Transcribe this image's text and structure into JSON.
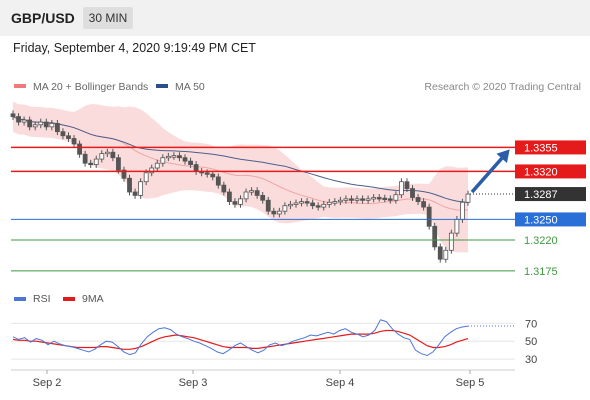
{
  "header": {
    "symbol": "GBP/USD",
    "timeframe": "30 MIN"
  },
  "timestamp": "Friday, September 4, 2020 9:19:49 PM CET",
  "copyright": "Research © 2020 Trading Central",
  "colors": {
    "red": "#e51b1b",
    "blue": "#2a6ed8",
    "green": "#3f9a3f",
    "dark": "#333333",
    "candle": "#555555",
    "band_fill": "#fbdcdc",
    "ma20": "#f2a5a5",
    "ma50": "#4a5f8c",
    "arrow": "#2b5da8",
    "rsi": "#4c76d8",
    "rsi_ma": "#e51b1b"
  },
  "chart_data": [
    {
      "type": "candlestick",
      "title": "GBP/USD",
      "timeframe": "30 MIN",
      "legend": [
        {
          "name": "MA 20 + Bollinger Bands",
          "color": "#f07a7a"
        },
        {
          "name": "MA 50",
          "color": "#2b4f8c"
        }
      ],
      "x_ticks": [
        "Sep 2",
        "Sep 3",
        "Sep 4",
        "Sep 5"
      ],
      "ylim": [
        1.315,
        1.343
      ],
      "levels": [
        {
          "value": "1.3355",
          "color": "red",
          "label_style": "filled"
        },
        {
          "value": "1.3320",
          "color": "red",
          "label_style": "filled"
        },
        {
          "value": "1.3287",
          "color": "dark",
          "label_style": "filled",
          "line": "dotted"
        },
        {
          "value": "1.3250",
          "color": "blue",
          "label_style": "filled"
        },
        {
          "value": "1.3220",
          "color": "green",
          "label_style": "text"
        },
        {
          "value": "1.3175",
          "color": "green",
          "label_style": "text"
        }
      ],
      "close_series": [
        1.34,
        1.3392,
        1.3395,
        1.3385,
        1.3388,
        1.3392,
        1.3385,
        1.339,
        1.3378,
        1.3372,
        1.3368,
        1.336,
        1.3345,
        1.3332,
        1.333,
        1.3338,
        1.3346,
        1.3348,
        1.334,
        1.3322,
        1.331,
        1.329,
        1.3285,
        1.3305,
        1.3318,
        1.3325,
        1.3332,
        1.334,
        1.3342,
        1.3343,
        1.334,
        1.3335,
        1.333,
        1.332,
        1.3318,
        1.3316,
        1.3312,
        1.33,
        1.329,
        1.3276,
        1.3272,
        1.328,
        1.329,
        1.3292,
        1.3285,
        1.3278,
        1.3262,
        1.3258,
        1.3262,
        1.327,
        1.3272,
        1.3274,
        1.3276,
        1.3274,
        1.327,
        1.3268,
        1.3272,
        1.3275,
        1.3276,
        1.3278,
        1.328,
        1.3278,
        1.328,
        1.3278,
        1.328,
        1.3282,
        1.3281,
        1.328,
        1.3278,
        1.3286,
        1.3305,
        1.3295,
        1.3282,
        1.3276,
        1.3268,
        1.324,
        1.321,
        1.3192,
        1.3205,
        1.323,
        1.325,
        1.3275,
        1.3287
      ],
      "arrow_target": 1.3355
    },
    {
      "type": "line",
      "title": "RSI",
      "legend": [
        {
          "name": "RSI",
          "color": "#4c76d8"
        },
        {
          "name": "9MA",
          "color": "#e51b1b"
        }
      ],
      "y_ticks": [
        "70",
        "50",
        "30"
      ],
      "ylim": [
        20,
        85
      ],
      "series": [
        {
          "name": "RSI",
          "values": [
            55,
            52,
            54,
            49,
            53,
            51,
            46,
            50,
            47,
            45,
            44,
            42,
            40,
            38,
            41,
            46,
            50,
            49,
            44,
            38,
            35,
            37,
            47,
            55,
            60,
            64,
            65,
            63,
            58,
            55,
            53,
            50,
            48,
            45,
            42,
            38,
            36,
            40,
            45,
            48,
            44,
            40,
            37,
            40,
            46,
            48,
            45,
            47,
            50,
            52,
            54,
            57,
            56,
            58,
            60,
            58,
            62,
            64,
            60,
            58,
            55,
            57,
            62,
            74,
            72,
            64,
            58,
            54,
            52,
            40,
            36,
            34,
            38,
            46,
            55,
            60,
            64,
            66,
            67
          ]
        },
        {
          "name": "9MA",
          "values": [
            52,
            51,
            51,
            50,
            50,
            49,
            48,
            47,
            46,
            45,
            44,
            43,
            43,
            43,
            43,
            44,
            44,
            43,
            42,
            41,
            41,
            42,
            44,
            47,
            50,
            53,
            55,
            56,
            57,
            56,
            55,
            54,
            52,
            50,
            48,
            46,
            44,
            43,
            43,
            43,
            43,
            42,
            42,
            43,
            44,
            45,
            46,
            47,
            48,
            49,
            50,
            51,
            52,
            53,
            54,
            55,
            56,
            57,
            58,
            58,
            58,
            58,
            59,
            61,
            62,
            62,
            61,
            59,
            57,
            53,
            49,
            45,
            43,
            43,
            44,
            46,
            49,
            51,
            53
          ]
        }
      ]
    }
  ]
}
